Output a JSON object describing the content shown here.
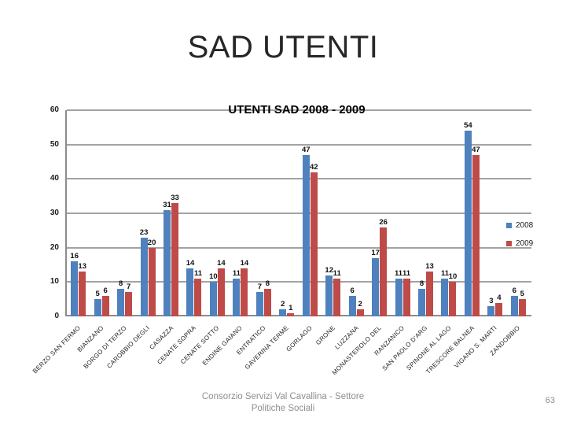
{
  "slide": {
    "title": "SAD UTENTI",
    "footer_line1": "Consorzio Servizi Val Cavallina - Settore",
    "footer_line2": "Politiche Sociali",
    "page_number": "63"
  },
  "chart_data": {
    "type": "bar",
    "title": "UTENTI SAD 2008 - 2009",
    "categories": [
      "BERZO SAN FERMO",
      "BIANZANO",
      "BORGO DI TERZO",
      "CAROBBIO DEGLI",
      "CASAZZA",
      "CENATE SOPRA",
      "CENATE SOTTO",
      "ENDINE GAIANO",
      "ENTRATICO",
      "GAVERINA TERME",
      "GORLAGO",
      "GRONE",
      "LUZZANA",
      "MONASTEROLO DEL",
      "RANZANICO",
      "SAN PAOLO D'ARG",
      "SPINONE AL LAGO",
      "TRESCORE BALNEA",
      "VIGANO S. MARTI",
      "ZANDOBBIO"
    ],
    "series": [
      {
        "name": "2008",
        "color": "#4e81bd",
        "values": [
          16,
          5,
          8,
          23,
          31,
          14,
          10,
          11,
          7,
          2,
          47,
          12,
          6,
          17,
          11,
          8,
          11,
          54,
          3,
          6
        ]
      },
      {
        "name": "2009",
        "color": "#be4b48",
        "values": [
          13,
          6,
          7,
          20,
          33,
          11,
          14,
          14,
          8,
          1,
          42,
          11,
          2,
          26,
          11,
          13,
          10,
          47,
          4,
          5
        ]
      }
    ],
    "xlabel": "",
    "ylabel": "",
    "ylim": [
      0,
      60
    ],
    "yticks": [
      0,
      10,
      20,
      30,
      40,
      50,
      60
    ],
    "grid": true,
    "data_labels": true,
    "legend_position": "right",
    "colors": {
      "gridline": "#a3a3a3",
      "axis": "#8c8c8c"
    }
  }
}
